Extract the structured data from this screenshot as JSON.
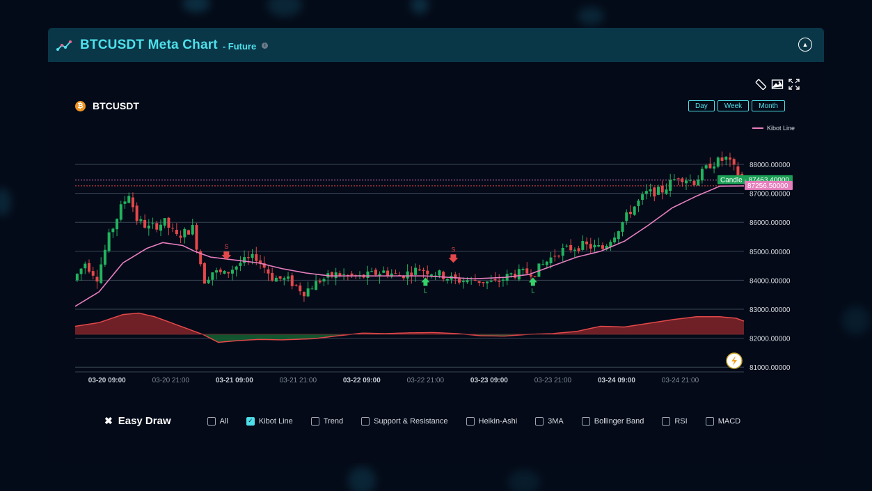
{
  "header": {
    "title": "BTCUSDT Meta Chart",
    "subtitle": "- Future",
    "info_icon": "info-icon",
    "collapse_icon": "chevron-up-circle-icon"
  },
  "toolbar": {
    "icons": [
      "ruler-icon",
      "image-icon",
      "fullscreen-icon"
    ]
  },
  "symbol": {
    "name": "BTCUSDT",
    "icon": "bitcoin-icon",
    "icon_glyph": "₿"
  },
  "timeframes": [
    "Day",
    "Week",
    "Month"
  ],
  "legend": {
    "kibot_line": "Kibot Line"
  },
  "price_labels": {
    "candle": "Candle - 87463.40000",
    "kibot": "87256.50000"
  },
  "easy_draw": {
    "label": "Easy Draw"
  },
  "indicators": [
    {
      "label": "All",
      "checked": false
    },
    {
      "label": "Kibot Line",
      "checked": true
    },
    {
      "label": "Trend",
      "checked": false
    },
    {
      "label": "Support & Resistance",
      "checked": false
    },
    {
      "label": "Heikin-Ashi",
      "checked": false
    },
    {
      "label": "3MA",
      "checked": false
    },
    {
      "label": "Bollinger Band",
      "checked": false
    },
    {
      "label": "RSI",
      "checked": false
    },
    {
      "label": "MACD",
      "checked": false
    }
  ],
  "colors": {
    "up": "#22b35e",
    "down": "#e4484a",
    "kibot": "#e87fc0",
    "accent": "#4ee0ea",
    "header_bg": "#0a3748"
  },
  "chart_data": {
    "type": "candlestick",
    "title": "BTCUSDT",
    "y_ticks": [
      "88000.00000",
      "87000.00000",
      "86000.00000",
      "85000.00000",
      "84000.00000",
      "83000.00000",
      "82000.00000",
      "81000.00000"
    ],
    "ylim": [
      80850,
      88800
    ],
    "x_ticks": [
      "03-20 09:00",
      "03-20 21:00",
      "03-21 09:00",
      "03-21 21:00",
      "03-22 09:00",
      "03-22 21:00",
      "03-23 09:00",
      "03-23 21:00",
      "03-24 09:00",
      "03-24 21:00"
    ],
    "x_tick_index": [
      8,
      24,
      40,
      56,
      72,
      88,
      104,
      120,
      136,
      152
    ],
    "anchors": [
      [
        0,
        84000
      ],
      [
        3,
        84600
      ],
      [
        6,
        84100
      ],
      [
        9,
        85500
      ],
      [
        12,
        86500
      ],
      [
        14,
        87000
      ],
      [
        16,
        86100
      ],
      [
        19,
        85800
      ],
      [
        23,
        86000
      ],
      [
        26,
        85500
      ],
      [
        30,
        85800
      ],
      [
        33,
        84000
      ],
      [
        35,
        84300
      ],
      [
        38,
        84200
      ],
      [
        42,
        84600
      ],
      [
        46,
        84800
      ],
      [
        50,
        84100
      ],
      [
        54,
        84000
      ],
      [
        58,
        83600
      ],
      [
        62,
        84000
      ],
      [
        66,
        84200
      ],
      [
        72,
        84100
      ],
      [
        78,
        84300
      ],
      [
        82,
        84150
      ],
      [
        87,
        84400
      ],
      [
        92,
        84200
      ],
      [
        96,
        84000
      ],
      [
        101,
        84000
      ],
      [
        106,
        83900
      ],
      [
        110,
        84200
      ],
      [
        116,
        84300
      ],
      [
        122,
        85000
      ],
      [
        128,
        85200
      ],
      [
        133,
        85100
      ],
      [
        136,
        85600
      ],
      [
        140,
        86400
      ],
      [
        144,
        87000
      ],
      [
        148,
        87100
      ],
      [
        152,
        87600
      ],
      [
        156,
        87400
      ],
      [
        160,
        88000
      ],
      [
        164,
        88200
      ],
      [
        168,
        87500
      ]
    ],
    "kibot_line": [
      [
        0,
        83100
      ],
      [
        6,
        83600
      ],
      [
        12,
        84600
      ],
      [
        18,
        85100
      ],
      [
        22,
        85300
      ],
      [
        27,
        85200
      ],
      [
        30,
        85000
      ],
      [
        34,
        84800
      ],
      [
        40,
        84700
      ],
      [
        46,
        84600
      ],
      [
        52,
        84400
      ],
      [
        58,
        84250
      ],
      [
        64,
        84150
      ],
      [
        72,
        84150
      ],
      [
        80,
        84150
      ],
      [
        88,
        84150
      ],
      [
        94,
        84100
      ],
      [
        100,
        84050
      ],
      [
        108,
        84100
      ],
      [
        114,
        84200
      ],
      [
        120,
        84500
      ],
      [
        126,
        84800
      ],
      [
        132,
        85000
      ],
      [
        138,
        85350
      ],
      [
        144,
        85900
      ],
      [
        150,
        86500
      ],
      [
        156,
        86900
      ],
      [
        162,
        87250
      ],
      [
        168,
        87256
      ]
    ],
    "oscillator": [
      [
        0,
        0.55
      ],
      [
        6,
        0.8
      ],
      [
        12,
        1.35
      ],
      [
        16,
        1.45
      ],
      [
        20,
        1.2
      ],
      [
        24,
        0.8
      ],
      [
        28,
        0.4
      ],
      [
        32,
        0.0
      ],
      [
        36,
        -0.55
      ],
      [
        40,
        -0.45
      ],
      [
        46,
        -0.35
      ],
      [
        52,
        -0.38
      ],
      [
        60,
        -0.3
      ],
      [
        66,
        -0.1
      ],
      [
        72,
        0.08
      ],
      [
        78,
        0.05
      ],
      [
        84,
        0.1
      ],
      [
        90,
        0.12
      ],
      [
        96,
        0.05
      ],
      [
        102,
        -0.1
      ],
      [
        108,
        -0.12
      ],
      [
        114,
        0.0
      ],
      [
        120,
        0.05
      ],
      [
        126,
        0.2
      ],
      [
        132,
        0.55
      ],
      [
        138,
        0.5
      ],
      [
        144,
        0.75
      ],
      [
        150,
        1.0
      ],
      [
        156,
        1.2
      ],
      [
        162,
        1.2
      ],
      [
        166,
        1.1
      ],
      [
        168,
        0.9
      ]
    ],
    "signals": [
      {
        "type": "S",
        "index": 38,
        "price": 84800
      },
      {
        "type": "L",
        "index": 88,
        "price": 84000
      },
      {
        "type": "S",
        "index": 95,
        "price": 84700
      },
      {
        "type": "L",
        "index": 115,
        "price": 84000
      }
    ]
  }
}
